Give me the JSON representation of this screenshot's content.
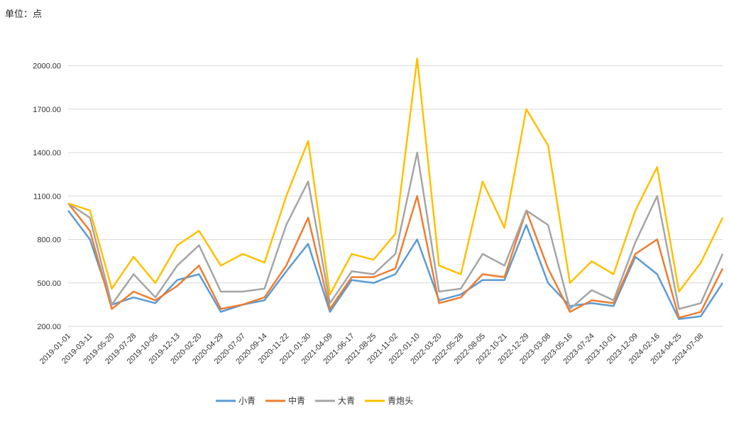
{
  "unit_label": "单位：点",
  "chart_data": {
    "type": "line",
    "title": "",
    "xlabel": "",
    "ylabel": "",
    "ylim": [
      200,
      2150
    ],
    "yticks": [
      "200.00",
      "500.00",
      "800.00",
      "1100.00",
      "1400.00",
      "1700.00",
      "2000.00"
    ],
    "ytick_values": [
      200,
      500,
      800,
      1100,
      1400,
      1700,
      2000
    ],
    "x_tick_labels": [
      "2019-01-01",
      "2019-03-11",
      "2019-05-20",
      "2019-07-28",
      "2019-10-05",
      "2019-12-13",
      "2020-02-20",
      "2020-04-29",
      "2020-07-07",
      "2020-09-14",
      "2020-11-22",
      "2021-01-30",
      "2021-04-09",
      "2021-06-17",
      "2021-08-25",
      "2021-11-02",
      "2022-01-10",
      "2022-03-20",
      "2022-05-28",
      "2022-08-05",
      "2022-10-21",
      "2022-12-29",
      "2023-03-08",
      "2023-05-16",
      "2023-07-24",
      "2023-10-01",
      "2023-12-09",
      "2024-02-16",
      "2024-04-25",
      "2024-07-08"
    ],
    "x": [
      "2019-01-01",
      "2019-03-11",
      "2019-05-20",
      "2019-07-28",
      "2019-10-05",
      "2019-12-13",
      "2020-02-20",
      "2020-04-29",
      "2020-07-07",
      "2020-09-14",
      "2020-11-22",
      "2021-01-30",
      "2021-04-09",
      "2021-06-17",
      "2021-08-25",
      "2021-11-02",
      "2022-01-10",
      "2022-03-20",
      "2022-05-28",
      "2022-08-05",
      "2022-10-21",
      "2022-12-29",
      "2023-03-08",
      "2023-05-16",
      "2023-07-24",
      "2023-10-01",
      "2023-12-09",
      "2024-02-16",
      "2024-04-25",
      "2024-07-08",
      "2024-07-30"
    ],
    "grid": true,
    "legend": "bottom",
    "series": [
      {
        "name": "小青",
        "color": "#5B9BD5",
        "values": [
          1000,
          800,
          350,
          400,
          360,
          520,
          560,
          300,
          350,
          380,
          580,
          770,
          300,
          520,
          500,
          560,
          800,
          380,
          420,
          520,
          520,
          900,
          500,
          340,
          360,
          340,
          680,
          560,
          250,
          270,
          500
        ]
      },
      {
        "name": "中青",
        "color": "#ED7D31",
        "values": [
          1050,
          860,
          320,
          440,
          380,
          480,
          620,
          320,
          350,
          400,
          620,
          950,
          320,
          540,
          540,
          600,
          1100,
          360,
          400,
          560,
          540,
          1000,
          600,
          300,
          380,
          360,
          700,
          800,
          260,
          300,
          600
        ]
      },
      {
        "name": "大青",
        "color": "#A5A5A5",
        "values": [
          1050,
          950,
          350,
          560,
          400,
          620,
          760,
          440,
          440,
          460,
          900,
          1200,
          360,
          580,
          560,
          700,
          1400,
          440,
          460,
          700,
          620,
          1000,
          900,
          320,
          450,
          380,
          780,
          1100,
          320,
          360,
          700
        ]
      },
      {
        "name": "青炮头",
        "color": "#FFC000",
        "values": [
          1050,
          1000,
          460,
          680,
          500,
          760,
          860,
          620,
          700,
          640,
          1100,
          1480,
          420,
          700,
          660,
          840,
          2050,
          620,
          560,
          1200,
          880,
          1700,
          1450,
          500,
          650,
          560,
          1000,
          1300,
          440,
          640,
          950
        ]
      }
    ]
  }
}
